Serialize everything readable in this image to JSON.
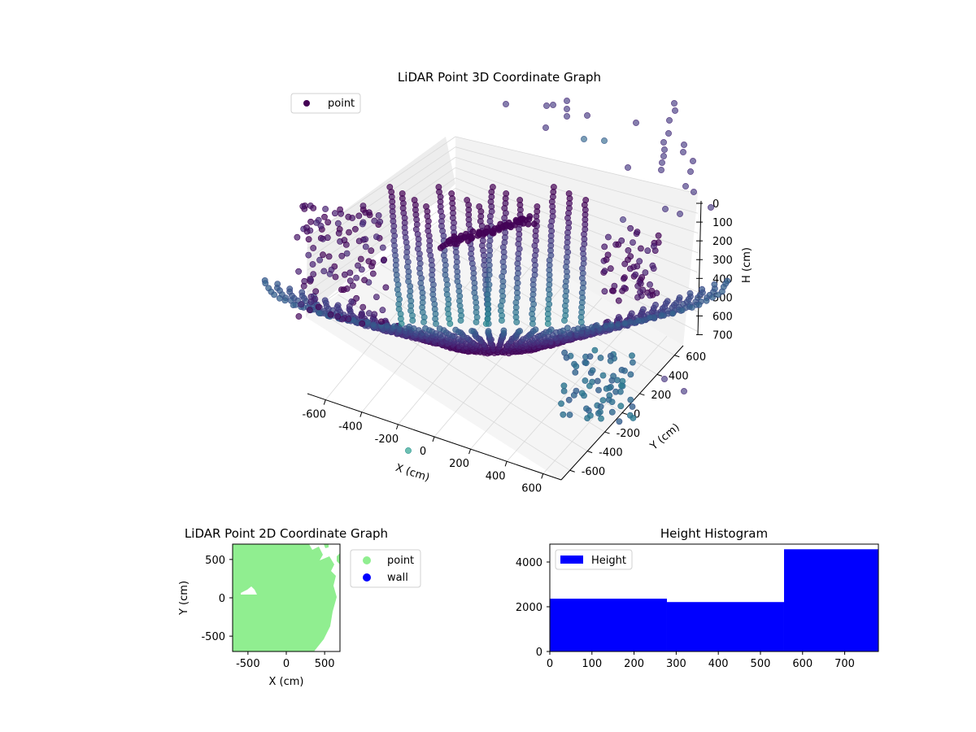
{
  "chart_data": [
    {
      "type": "scatter",
      "title": "LiDAR Point 3D Coordinate Graph",
      "xlabel": "X (cm)",
      "ylabel": "Y (cm)",
      "zlabel": "H (cm)",
      "legend": [
        "point"
      ],
      "legend_position": "top-left",
      "xlim": [
        -700,
        700
      ],
      "ylim": [
        -700,
        700
      ],
      "zlim": [
        0,
        780
      ],
      "z_inverted": true,
      "x_ticks": [
        "-600",
        "-400",
        "-200",
        "0",
        "200",
        "400",
        "600"
      ],
      "y_ticks": [
        "-600",
        "-400",
        "-200",
        "0",
        "200",
        "400",
        "600"
      ],
      "z_ticks": [
        "0",
        "100",
        "200",
        "300",
        "400",
        "500",
        "600",
        "700"
      ],
      "colormap": "viridis",
      "grid": true,
      "colors": {
        "point_dark": "#440154",
        "point_mid": "#3b528b",
        "point_light": "#21918c",
        "pane": "#f2f2f2"
      }
    },
    {
      "type": "scatter",
      "title": "LiDAR Point 2D Coordinate Graph",
      "xlabel": "X (cm)",
      "ylabel": "Y (cm)",
      "xlim": [
        -700,
        700
      ],
      "ylim": [
        -700,
        700
      ],
      "x_ticks": [
        "-500",
        "0",
        "500"
      ],
      "y_ticks": [
        "500",
        "0",
        "-500"
      ],
      "legend": [
        "point",
        "wall"
      ],
      "legend_position": "outside-right",
      "colors": {
        "point": "#90ee90",
        "wall": "#0000ff"
      }
    },
    {
      "type": "bar",
      "title": "Height Histogram",
      "legend": [
        "Height"
      ],
      "legend_position": "top-left",
      "bins": [
        {
          "from": 0,
          "to": 278,
          "count": 2360
        },
        {
          "from": 278,
          "to": 556,
          "count": 2210
        },
        {
          "from": 556,
          "to": 780,
          "count": 4570
        }
      ],
      "xlim": [
        0,
        780
      ],
      "ylim": [
        0,
        4800
      ],
      "x_ticks": [
        "0",
        "100",
        "200",
        "300",
        "400",
        "500",
        "600",
        "700"
      ],
      "y_ticks": [
        "0",
        "2000",
        "4000"
      ],
      "colors": {
        "bar": "#0000ff"
      }
    }
  ]
}
